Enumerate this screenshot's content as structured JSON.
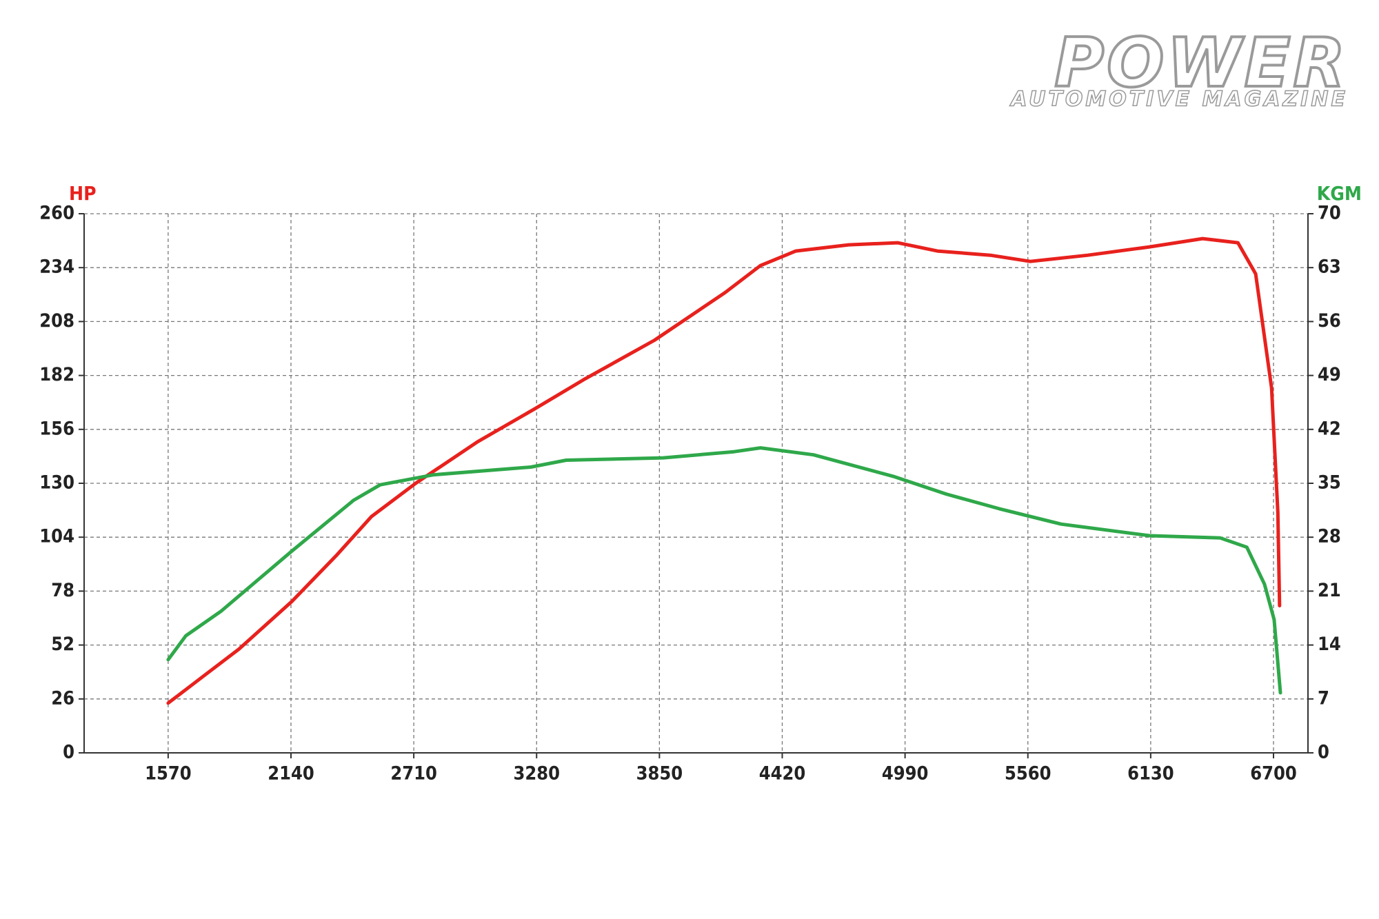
{
  "logo": {
    "title": "POWER",
    "subtitle": "AUTOMOTIVE MAGAZINE"
  },
  "chart_data": {
    "type": "line",
    "y_label": "HP",
    "y2_label": "KGM",
    "xlim": [
      1180,
      6860
    ],
    "xticks": [
      1570,
      2140,
      2710,
      3280,
      3850,
      4420,
      4990,
      5560,
      6130,
      6700
    ],
    "ylim": [
      0,
      260
    ],
    "yticks": [
      0,
      26,
      52,
      78,
      104,
      130,
      156,
      182,
      208,
      234,
      260
    ],
    "y2lim": [
      0,
      70
    ],
    "y2ticks": [
      0,
      7,
      14,
      21,
      28,
      35,
      42,
      49,
      56,
      63,
      70
    ],
    "grid": true,
    "y_color": "#e8211d",
    "y2_color": "#2fa84a",
    "series": [
      {
        "color": "#e8211d",
        "x": [
          1570,
          1734,
          1898,
          2144,
          2349,
          2514,
          2719,
          3006,
          3273,
          3499,
          3827,
          4155,
          4319,
          4483,
          4729,
          4955,
          5140,
          5386,
          5571,
          5838,
          6125,
          6371,
          6535,
          6617,
          6691,
          6720,
          6728
        ],
        "values": [
          24,
          37,
          50,
          73,
          95,
          114,
          130,
          150,
          166,
          180,
          199,
          222,
          235,
          242,
          245,
          246,
          242,
          240,
          237,
          240,
          244,
          248,
          246,
          231,
          176,
          116,
          71
        ]
      },
      {
        "color": "#2fa84a",
        "axis": "y2",
        "x": [
          1570,
          1652,
          1816,
          2144,
          2431,
          2554,
          2801,
          3253,
          3417,
          3868,
          4196,
          4319,
          4565,
          4935,
          5181,
          5427,
          5714,
          5961,
          6125,
          6453,
          6576,
          6658,
          6703,
          6732
        ],
        "values": [
          12.1,
          15.2,
          18.4,
          26.2,
          32.8,
          34.8,
          36.1,
          37.1,
          38.0,
          38.3,
          39.1,
          39.6,
          38.7,
          35.9,
          33.6,
          31.7,
          29.7,
          28.8,
          28.2,
          27.9,
          26.7,
          21.9,
          17.3,
          7.8
        ]
      }
    ]
  }
}
